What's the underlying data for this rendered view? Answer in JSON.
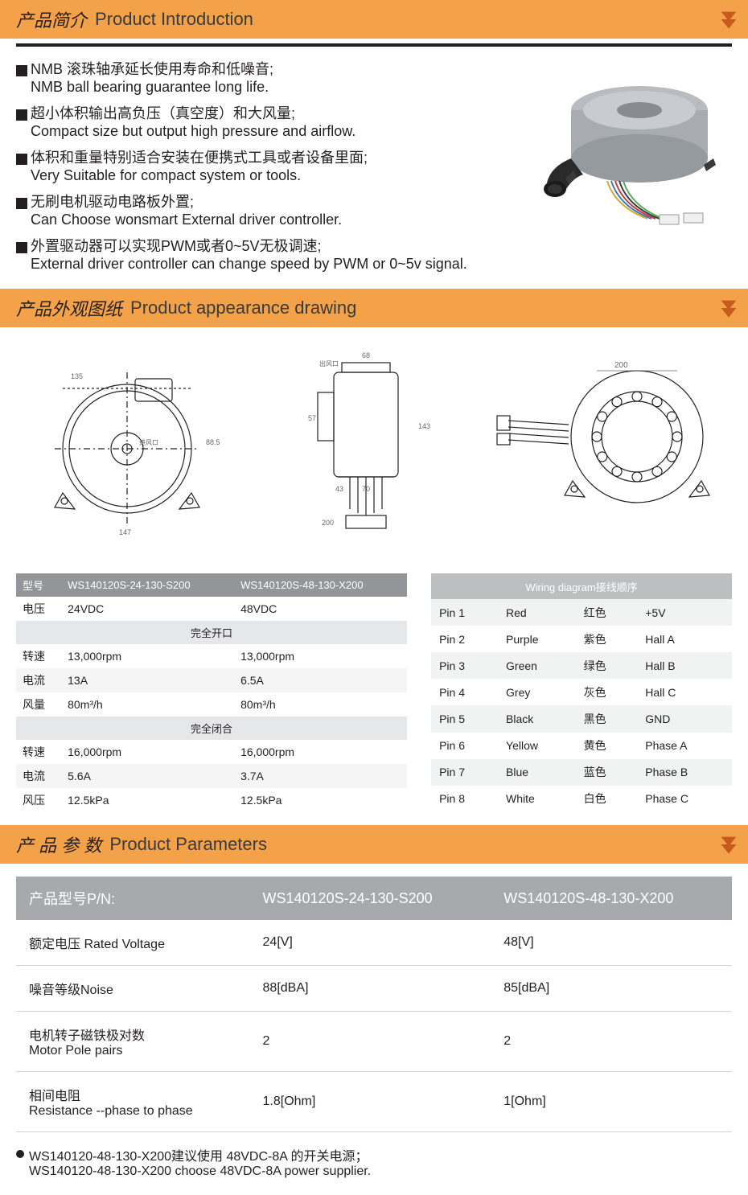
{
  "colors": {
    "header_bg": "#f4a24a",
    "arrow": "#c85a1e",
    "text": "#231f20",
    "table_hdr": "#939598",
    "table_sub": "#e6e7e8",
    "wire_hdr": "#bcbec0",
    "param_hdr": "#a7a9ac"
  },
  "sections": {
    "intro": {
      "cn": "产品简介",
      "en": "Product Introduction"
    },
    "drawing": {
      "cn": "产品外观图纸",
      "en": "Product appearance drawing"
    },
    "params": {
      "cn": "产 品 参 数",
      "en": "Product Parameters"
    }
  },
  "intro_items": [
    {
      "cn": "NMB 滚珠轴承延长使用寿命和低噪音;",
      "en": "NMB ball bearing guarantee long life."
    },
    {
      "cn": "超小体积输出高负压（真空度）和大风量;",
      "en": "Compact size but output high pressure and airflow."
    },
    {
      "cn": "体积和重量特别适合安装在便携式工具或者设备里面;",
      "en": "Very Suitable for compact system or tools."
    },
    {
      "cn": "无刷电机驱动电路板外置;",
      "en": "Can Choose wonsmart External driver controller."
    },
    {
      "cn": "外置驱动器可以实现PWM或者0~5V无极调速;",
      "en": "External driver controller can change speed by PWM or 0~5v signal."
    }
  ],
  "spec": {
    "header": [
      "型号<Part NO>",
      "WS140120S-24-130-S200",
      "WS140120S-48-130-X200"
    ],
    "rows1": [
      [
        "电压<Voltage>",
        "24VDC",
        "48VDC"
      ]
    ],
    "sub1": "完全开口<Open>",
    "rows2": [
      [
        "转速<Speed>",
        "13,000rpm",
        "13,000rpm"
      ],
      [
        "电流<Current>",
        "13A",
        "6.5A"
      ],
      [
        "风量<Air flow>",
        "80m³/h",
        "80m³/h"
      ]
    ],
    "sub2": "完全闭合<Sealed>",
    "rows3": [
      [
        "转速<Speed>",
        "16,000rpm",
        "16,000rpm"
      ],
      [
        "电流<Current>",
        "5.6A",
        "3.7A"
      ],
      [
        "风压<Air pressure>",
        "12.5kPa",
        "12.5kPa"
      ]
    ]
  },
  "wiring": {
    "title": "Wiring diagram接线顺序",
    "rows": [
      [
        "Pin 1",
        "Red",
        "红色",
        "+5V"
      ],
      [
        "Pin 2",
        "Purple",
        "紫色",
        "Hall A"
      ],
      [
        "Pin 3",
        "Green",
        "绿色",
        "Hall B"
      ],
      [
        "Pin 4",
        "Grey",
        "灰色",
        "Hall C"
      ],
      [
        "Pin 5",
        "Black",
        "黑色",
        "GND"
      ],
      [
        "Pin 6",
        "Yellow",
        "黄色",
        "Phase A"
      ],
      [
        "Pin 7",
        "Blue",
        "蓝色",
        "Phase B"
      ],
      [
        "Pin 8",
        "White",
        "白色",
        "Phase C"
      ]
    ]
  },
  "params": {
    "header": [
      "产品型号P/N:",
      "WS140120S-24-130-S200",
      "WS140120S-48-130-X200"
    ],
    "rows": [
      [
        "额定电压 Rated Voltage",
        "24[V]",
        "48[V]"
      ],
      [
        "噪音等级Noise",
        "88[dBA]",
        "85[dBA]"
      ],
      [
        "电机转子磁铁极对数\nMotor Pole pairs",
        "2",
        "2"
      ],
      [
        "相间电阻\nResistance --phase to phase",
        "1.8[Ohm]",
        "1[Ohm]"
      ]
    ]
  },
  "footnote": {
    "cn": "WS140120-48-130-X200建议使用 48VDC-8A 的开关电源；",
    "en": "WS140120-48-130-X200 choose 48VDC-8A power supplier."
  },
  "drawing_dims": {
    "d1_dia": "135",
    "d1_h": "88.5",
    "d1_w": "147",
    "d2_h": "143",
    "d2_w": "70",
    "d2_base": "43",
    "d2_top": "68",
    "d2_side": "57",
    "d2_foot": "200",
    "d3_dia": "200"
  }
}
